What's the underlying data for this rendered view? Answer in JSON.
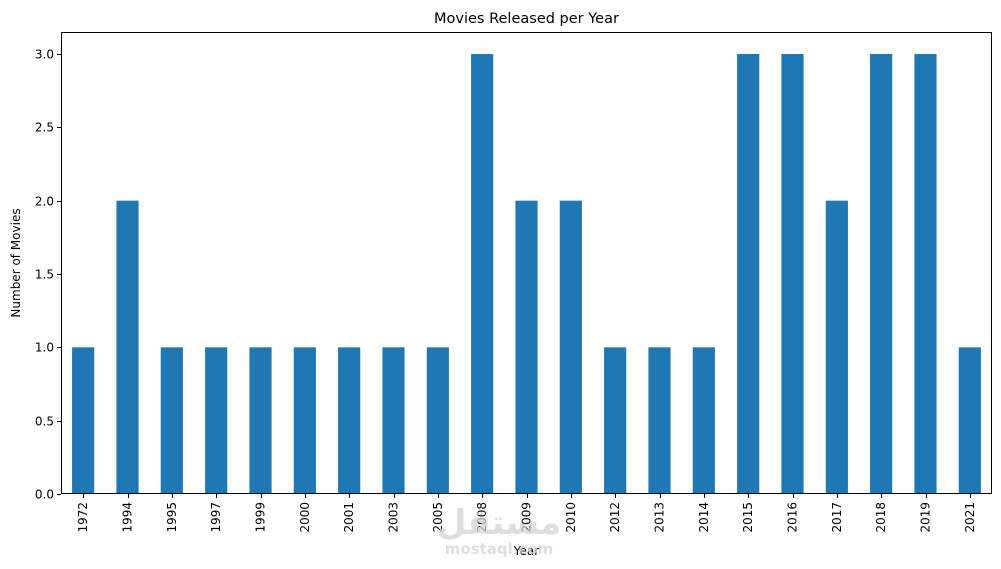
{
  "chart_data": {
    "type": "bar",
    "title": "Movies Released per Year",
    "xlabel": "Year",
    "ylabel": "Number of Movies",
    "categories": [
      "1972",
      "1994",
      "1995",
      "1997",
      "1999",
      "2000",
      "2001",
      "2003",
      "2005",
      "2008",
      "2009",
      "2010",
      "2012",
      "2013",
      "2014",
      "2015",
      "2016",
      "2017",
      "2018",
      "2019",
      "2021"
    ],
    "values": [
      1,
      2,
      1,
      1,
      1,
      1,
      1,
      1,
      1,
      3,
      2,
      2,
      1,
      1,
      1,
      3,
      3,
      2,
      3,
      3,
      1
    ],
    "ylim": [
      0,
      3.15
    ],
    "yticks": [
      "0.0",
      "0.5",
      "1.0",
      "1.5",
      "2.0",
      "2.5",
      "3.0"
    ],
    "grid": false,
    "bar_color": "#1f77b4"
  },
  "watermark": {
    "arabic_text": "مستقل",
    "latin_text": "mostaql.com"
  }
}
